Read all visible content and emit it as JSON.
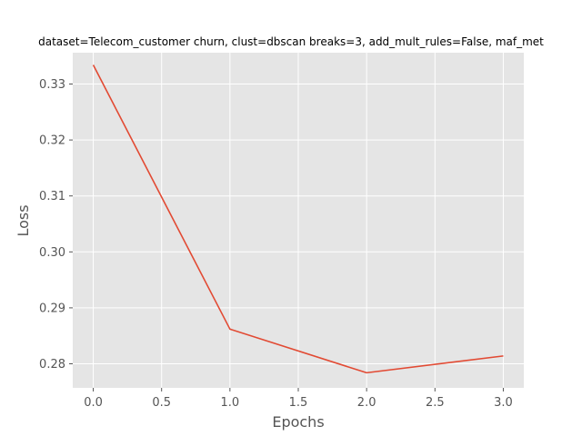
{
  "chart_data": {
    "type": "line",
    "title": "dataset=Telecom_customer churn, clust=dbscan breaks=3, add_mult_rules=False, maf_met",
    "xlabel": "Epochs",
    "ylabel": "Loss",
    "xlim": [
      -0.15,
      3.15
    ],
    "ylim": [
      0.2757,
      0.3356
    ],
    "xticks": [
      0.0,
      0.5,
      1.0,
      1.5,
      2.0,
      2.5,
      3.0
    ],
    "xtick_labels": [
      "0.0",
      "0.5",
      "1.0",
      "1.5",
      "2.0",
      "2.5",
      "3.0"
    ],
    "yticks": [
      0.28,
      0.29,
      0.3,
      0.31,
      0.32,
      0.33
    ],
    "ytick_labels": [
      "0.28",
      "0.29",
      "0.30",
      "0.31",
      "0.32",
      "0.33"
    ],
    "grid": true,
    "series": [
      {
        "x": [
          0,
          1,
          2,
          3
        ],
        "values": [
          0.3334,
          0.2862,
          0.2784,
          0.2814
        ],
        "color": "#E24A33"
      }
    ],
    "colors": {
      "plot_background": "#E5E5E5",
      "grid": "#FFFFFF",
      "text": "#555555"
    }
  }
}
